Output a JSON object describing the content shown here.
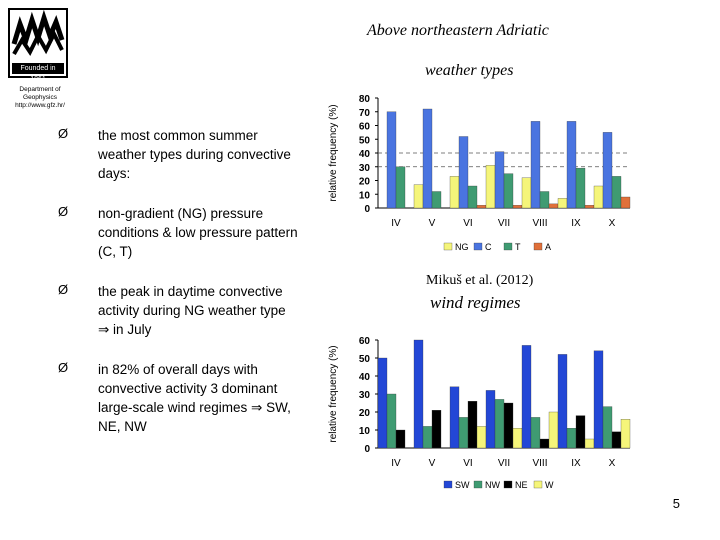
{
  "header": {
    "title": "Above northeastern Adriatic",
    "subtitle": "weather types",
    "logo_text": "Founded in 1861",
    "department": [
      "Department of",
      "Geophysics",
      "http://www.gfz.hr/"
    ]
  },
  "bullets": [
    "the most common summer weather types during convective days:",
    "non-gradient (NG) pressure conditions & low pressure pattern (C, T)",
    "the peak in daytime convective activity during NG weather type ⇒ in July",
    "in 82% of overall days with convective activity 3 dominant large-scale wind regimes ⇒ SW, NE, NW"
  ],
  "bullet_marker": "Ø",
  "citation": "Mikuš et al. (2012)",
  "second_title": "wind regimes",
  "page_number": "5",
  "chart_data": [
    {
      "type": "bar",
      "title": "",
      "ylabel": "relative frequency  (%)",
      "xlabel": "",
      "ylim": [
        0,
        80
      ],
      "yticks": [
        0,
        10,
        20,
        30,
        40,
        50,
        60,
        70,
        80
      ],
      "categories": [
        "IV",
        "V",
        "VI",
        "VII",
        "VIII",
        "IX",
        "X"
      ],
      "reference_lines": [
        30,
        40
      ],
      "legend_position": "bottom",
      "series": [
        {
          "name": "NG",
          "color": "#f5f57a",
          "values": [
            0,
            17,
            23,
            31,
            22,
            7,
            16
          ]
        },
        {
          "name": "C",
          "color": "#4a74e0",
          "values": [
            70,
            72,
            52,
            41,
            63,
            63,
            55
          ]
        },
        {
          "name": "T",
          "color": "#3f9b72",
          "values": [
            30,
            12,
            16,
            25,
            12,
            29,
            23
          ]
        },
        {
          "name": "A",
          "color": "#e0703a",
          "values": [
            0,
            0,
            2,
            2,
            3,
            2,
            8
          ]
        }
      ]
    },
    {
      "type": "bar",
      "title": "",
      "ylabel": "relative frequency  (%)",
      "xlabel": "",
      "ylim": [
        0,
        60
      ],
      "yticks": [
        0,
        10,
        20,
        30,
        40,
        50,
        60
      ],
      "categories": [
        "IV",
        "V",
        "VI",
        "VII",
        "VIII",
        "IX",
        "X"
      ],
      "legend_position": "bottom",
      "series": [
        {
          "name": "SW",
          "color": "#2347d6",
          "values": [
            50,
            60,
            34,
            32,
            57,
            52,
            54
          ]
        },
        {
          "name": "NW",
          "color": "#3f9b72",
          "values": [
            30,
            12,
            17,
            27,
            17,
            11,
            23
          ]
        },
        {
          "name": "NE",
          "color": "#000000",
          "values": [
            10,
            21,
            26,
            25,
            5,
            18,
            9
          ]
        },
        {
          "name": "W",
          "color": "#f5f57a",
          "values": [
            0,
            0,
            12,
            11,
            20,
            5,
            16
          ]
        }
      ]
    }
  ]
}
